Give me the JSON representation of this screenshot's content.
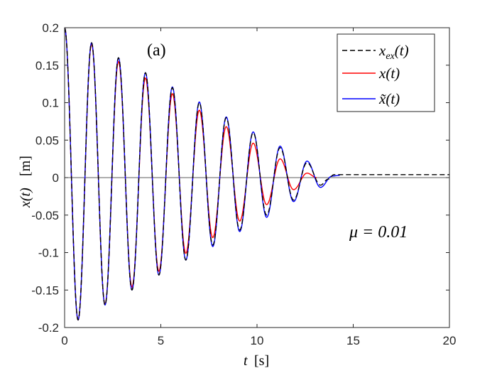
{
  "chart_data": {
    "type": "line",
    "panel_label": "(a)",
    "annotation": "μ = 0.01",
    "xlabel": {
      "var": "t",
      "unit": "[s]"
    },
    "ylabel": {
      "var": "x(t)",
      "unit": "[m]"
    },
    "xlim": [
      0,
      20
    ],
    "ylim": [
      -0.2,
      0.2
    ],
    "xticks": [
      0,
      5,
      10,
      15,
      20
    ],
    "xtick_labels": [
      "0",
      "5",
      "10",
      "15",
      "20"
    ],
    "yticks": [
      -0.2,
      -0.15,
      -0.1,
      -0.05,
      0,
      0.05,
      0.1,
      0.15,
      0.2
    ],
    "ytick_labels": [
      "-0.2",
      "-0.15",
      "-0.1",
      "-0.05",
      "0",
      "0.05",
      "0.1",
      "0.15",
      "0.2"
    ],
    "grid": false,
    "legend_position": "top-right",
    "zero_line": true,
    "series": [
      {
        "name": "x_ex(t)",
        "legend_main": "x",
        "legend_sub": "ex",
        "legend_tail": "(t)",
        "color": "#000000",
        "dash": true,
        "points": [
          [
            0,
            0.2
          ],
          [
            0.7,
            -0.19
          ],
          [
            1.4,
            0.18
          ],
          [
            2.1,
            -0.17
          ],
          [
            2.8,
            0.16
          ],
          [
            3.5,
            -0.15
          ],
          [
            4.2,
            0.14
          ],
          [
            4.9,
            -0.13
          ],
          [
            5.6,
            0.12
          ],
          [
            6.3,
            -0.11
          ],
          [
            7.0,
            0.1
          ],
          [
            7.7,
            -0.09
          ],
          [
            8.4,
            0.08
          ],
          [
            9.1,
            -0.07
          ],
          [
            9.8,
            0.06
          ],
          [
            10.5,
            -0.05
          ],
          [
            11.2,
            0.04
          ],
          [
            11.9,
            -0.03
          ],
          [
            12.6,
            0.02
          ],
          [
            13.3,
            -0.01
          ],
          [
            13.7,
            -0.002
          ],
          [
            14.0,
            0.004
          ],
          [
            20,
            0.004
          ]
        ]
      },
      {
        "name": "x(t)",
        "legend_main": "x",
        "legend_sub": "",
        "legend_tail": "(t)",
        "color": "#ff0000",
        "dash": false,
        "points": [
          [
            0,
            0.2
          ],
          [
            0.7,
            -0.19
          ],
          [
            1.4,
            0.178
          ],
          [
            2.1,
            -0.169
          ],
          [
            2.8,
            0.155
          ],
          [
            3.5,
            -0.146
          ],
          [
            4.2,
            0.133
          ],
          [
            4.9,
            -0.125
          ],
          [
            5.6,
            0.112
          ],
          [
            6.3,
            -0.101
          ],
          [
            7.0,
            0.09
          ],
          [
            7.7,
            -0.08
          ],
          [
            8.4,
            0.068
          ],
          [
            9.1,
            -0.058
          ],
          [
            9.8,
            0.046
          ],
          [
            10.5,
            -0.036
          ],
          [
            11.2,
            0.025
          ],
          [
            11.9,
            -0.016
          ],
          [
            12.6,
            0.006
          ],
          [
            13.1,
            0
          ]
        ]
      },
      {
        "name": "x̃(t)",
        "legend_main": "x̃",
        "legend_sub": "",
        "legend_tail": "(t)",
        "color": "#0000ff",
        "dash": false,
        "points": [
          [
            0,
            0.2
          ],
          [
            0.7,
            -0.19
          ],
          [
            1.4,
            0.18
          ],
          [
            2.1,
            -0.17
          ],
          [
            2.8,
            0.16
          ],
          [
            3.5,
            -0.15
          ],
          [
            4.2,
            0.14
          ],
          [
            4.9,
            -0.13
          ],
          [
            5.6,
            0.121
          ],
          [
            6.3,
            -0.11
          ],
          [
            7.0,
            0.101
          ],
          [
            7.7,
            -0.092
          ],
          [
            8.4,
            0.081
          ],
          [
            9.1,
            -0.072
          ],
          [
            9.8,
            0.061
          ],
          [
            10.5,
            -0.053
          ],
          [
            11.2,
            0.042
          ],
          [
            11.9,
            -0.032
          ],
          [
            12.6,
            0.022
          ],
          [
            13.3,
            -0.013
          ],
          [
            13.9,
            0.002
          ],
          [
            14.3,
            0.003
          ]
        ]
      }
    ]
  }
}
